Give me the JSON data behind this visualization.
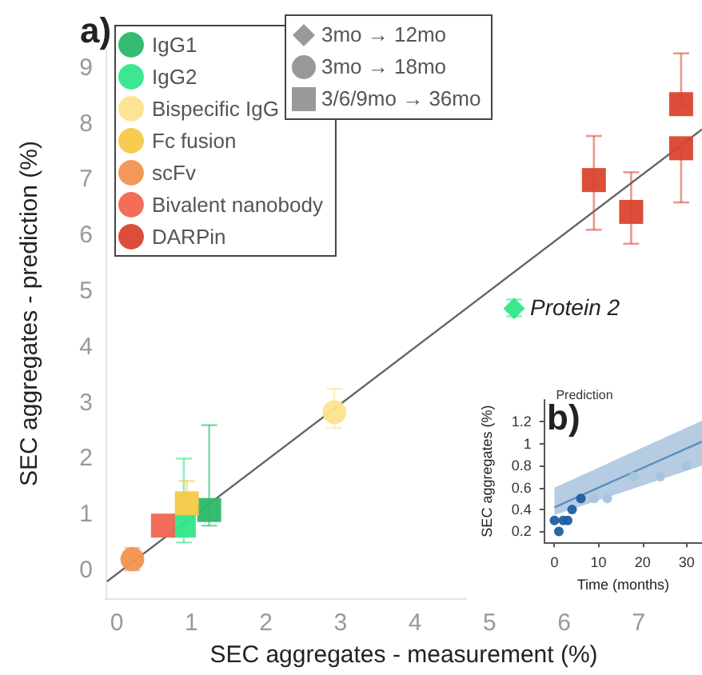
{
  "chart_data": [
    {
      "type": "scatter",
      "xlabel": "SEC aggregates - measurement (%)",
      "ylabel": "SEC aggregates - prediction (%)",
      "xlim": [
        -0.15,
        7.85
      ],
      "ylim": [
        -0.5,
        9.7
      ],
      "xticks": [
        0,
        1,
        2,
        3,
        4,
        5,
        6,
        7
      ],
      "yticks": [
        0,
        1,
        2,
        3,
        4,
        5,
        6,
        7,
        8,
        9
      ],
      "grid": false,
      "legend": "top left",
      "annotations": [
        "a)",
        "3mo → 12mo",
        "3mo → 18mo",
        "3/6/9mo → 36mo",
        {
          "text": "Protein 2",
          "x": 5.33,
          "y": 4.69
        }
      ],
      "series": [
        {
          "name": "IgG1",
          "color": "#2bb868",
          "marker": "square",
          "x": [
            1.24
          ],
          "values": [
            1.08
          ],
          "errors": [
            [
              0.8,
              2.6
            ]
          ]
        },
        {
          "name": "IgG2",
          "color": "#33e68a",
          "marker": "square",
          "x": [
            0.9
          ],
          "values": [
            0.8
          ],
          "errors": [
            [
              0.5,
              2.0
            ]
          ]
        },
        {
          "name": "Bispecific IgG",
          "color": "#fde38f",
          "marker": "circle",
          "x": [
            2.92
          ],
          "values": [
            2.83
          ],
          "errors": [
            [
              2.55,
              3.25
            ]
          ]
        },
        {
          "name": "Fc fusion",
          "color": "#f7c948",
          "marker": "square",
          "x": [
            0.94
          ],
          "values": [
            1.2
          ],
          "errors": [
            [
              0.9,
              1.6
            ]
          ]
        },
        {
          "name": "scFv",
          "color": "#f39250",
          "marker": "circle",
          "x": [
            0.21
          ],
          "values": [
            0.2
          ],
          "errors": [
            [
              0.0,
              0.4
            ]
          ]
        },
        {
          "name": "Bivalent nanobody",
          "color": "#f26552",
          "marker": "square",
          "x": [
            0.62
          ],
          "values": [
            0.8
          ],
          "errors": [
            null
          ]
        },
        {
          "name": "DARPin",
          "color": "#d9442e",
          "marker": "square",
          "x": [
            6.4,
            6.9,
            7.57,
            7.57
          ],
          "values": [
            6.99,
            6.42,
            8.35,
            7.56
          ],
          "errors": [
            [
              6.1,
              7.78
            ],
            [
              5.85,
              7.13
            ],
            [
              8.35,
              9.26
            ],
            [
              6.59,
              7.56
            ]
          ]
        },
        {
          "color": "#33e68a",
          "marker": "diamond",
          "x": [
            5.33
          ],
          "values": [
            4.69
          ],
          "errors": [
            [
              4.55,
              4.85
            ]
          ]
        },
        {
          "type": "line",
          "color": "#666666",
          "marker": "none",
          "x": [
            -0.13,
            7.85
          ],
          "values": [
            -0.2,
            7.9
          ]
        }
      ]
    },
    {
      "type": "scatter",
      "title": "Prediction",
      "xlabel": "Time (months)",
      "ylabel": "SEC aggregates (%)",
      "xlim": [
        -2.3,
        33.5
      ],
      "ylim": [
        0.1,
        1.4
      ],
      "xticks": [
        0,
        10,
        20,
        30
      ],
      "yticks": [
        0.2,
        0.4,
        0.6,
        0.8,
        1,
        1.2
      ],
      "grid": false,
      "annotations": [
        "b)"
      ],
      "series": [
        {
          "type": "line",
          "color": "#5b8fc0",
          "marker": "none",
          "x": [
            0,
            33.5
          ],
          "values": [
            0.42,
            1.02
          ],
          "lower": [
            0.35,
            0.8
          ],
          "upper": [
            0.6,
            1.21
          ]
        },
        {
          "color": "#1f5fa0",
          "marker": "circle",
          "x": [
            0,
            1,
            2,
            3,
            4,
            6
          ],
          "values": [
            0.3,
            0.2,
            0.3,
            0.3,
            0.4,
            0.5
          ]
        },
        {
          "color": "#a9c4dc",
          "marker": "circle",
          "x": [
            9,
            12,
            18,
            24,
            30
          ],
          "values": [
            0.5,
            0.5,
            0.7,
            0.7,
            0.8
          ]
        }
      ]
    }
  ]
}
